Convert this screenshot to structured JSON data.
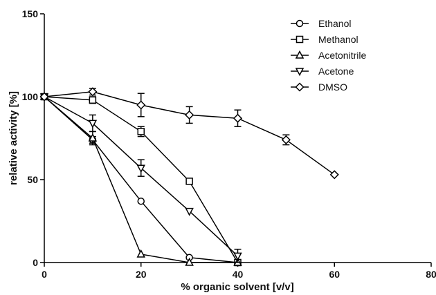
{
  "chart_data": {
    "type": "line",
    "xlabel": "% organic solvent [v/v]",
    "ylabel": "relative activity [%]",
    "xlim": [
      0,
      80
    ],
    "ylim": [
      0,
      150
    ],
    "xticks": [
      0,
      20,
      40,
      60,
      80
    ],
    "yticks": [
      0,
      50,
      100,
      150
    ],
    "grid": false,
    "legend_position": "top-right",
    "series": [
      {
        "name": "Ethanol",
        "marker": "circle",
        "x": [
          0,
          10,
          20,
          30,
          40
        ],
        "y": [
          100,
          74,
          37,
          3,
          0
        ],
        "err": [
          0,
          2,
          0,
          0,
          0
        ]
      },
      {
        "name": "Methanol",
        "marker": "square",
        "x": [
          0,
          10,
          20,
          30,
          40
        ],
        "y": [
          100,
          98,
          79,
          49,
          0
        ],
        "err": [
          0,
          2,
          3,
          0,
          1
        ]
      },
      {
        "name": "Acetonitrile",
        "marker": "triangle-up",
        "x": [
          0,
          10,
          20,
          30,
          40
        ],
        "y": [
          100,
          75,
          5,
          0,
          0
        ],
        "err": [
          0,
          4,
          0,
          0,
          0
        ]
      },
      {
        "name": "Acetone",
        "marker": "triangle-down",
        "x": [
          0,
          10,
          20,
          30,
          40
        ],
        "y": [
          100,
          84,
          57,
          31,
          4
        ],
        "err": [
          0,
          5,
          5,
          0,
          4
        ]
      },
      {
        "name": "DMSO",
        "marker": "diamond",
        "x": [
          0,
          10,
          20,
          30,
          40,
          50,
          60
        ],
        "y": [
          100,
          103,
          95,
          89,
          87,
          74,
          53
        ],
        "err": [
          0,
          2,
          7,
          5,
          5,
          3,
          0
        ]
      }
    ]
  }
}
